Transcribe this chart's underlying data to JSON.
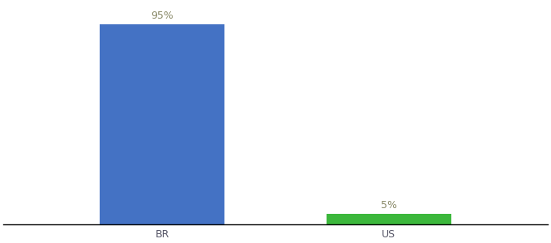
{
  "categories": [
    "BR",
    "US"
  ],
  "values": [
    95,
    5
  ],
  "bar_colors": [
    "#4472c4",
    "#3cb73c"
  ],
  "labels": [
    "95%",
    "5%"
  ],
  "ylim": [
    0,
    105
  ],
  "background_color": "#ffffff",
  "label_fontsize": 9,
  "tick_fontsize": 9,
  "label_color": "#888866",
  "tick_color": "#555566",
  "bar_width": 0.55
}
